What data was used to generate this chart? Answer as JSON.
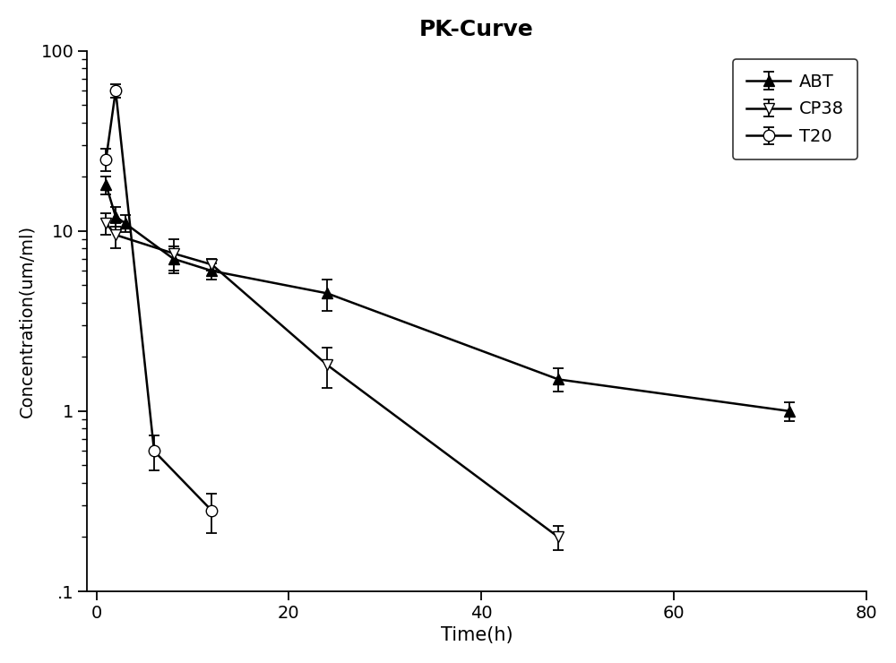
{
  "title": "PK-Curve",
  "xlabel": "Time(h)",
  "ylabel": "Concentration(um/ml)",
  "xlim": [
    -1,
    80
  ],
  "ylim": [
    0.1,
    100
  ],
  "xticks": [
    0,
    20,
    40,
    60,
    80
  ],
  "yticks": [
    0.1,
    1,
    10,
    100
  ],
  "ytick_labels": [
    ".1",
    "1",
    "10",
    "100"
  ],
  "ABT": {
    "x": [
      1,
      2,
      3,
      8,
      12,
      24,
      48,
      72
    ],
    "y": [
      18.0,
      12.0,
      11.0,
      7.0,
      6.0,
      4.5,
      1.5,
      1.0
    ],
    "yerr": [
      2.0,
      1.5,
      1.2,
      1.2,
      0.6,
      0.9,
      0.22,
      0.12
    ],
    "label": "ABT",
    "marker": "^",
    "fillstyle": "full"
  },
  "CP38": {
    "x": [
      1,
      2,
      8,
      12,
      24,
      48
    ],
    "y": [
      11.0,
      9.5,
      7.5,
      6.5,
      1.8,
      0.2
    ],
    "yerr": [
      1.5,
      1.5,
      1.5,
      0.5,
      0.45,
      0.03
    ],
    "label": "CP38",
    "marker": "v",
    "fillstyle": "none"
  },
  "T20": {
    "x": [
      1,
      2,
      6,
      12
    ],
    "y": [
      25.0,
      60.0,
      0.6,
      0.28
    ],
    "yerr": [
      3.5,
      5.0,
      0.13,
      0.07
    ],
    "label": "T20",
    "marker": "o",
    "fillstyle": "none"
  },
  "figsize": [
    10.0,
    7.4
  ],
  "dpi": 100
}
